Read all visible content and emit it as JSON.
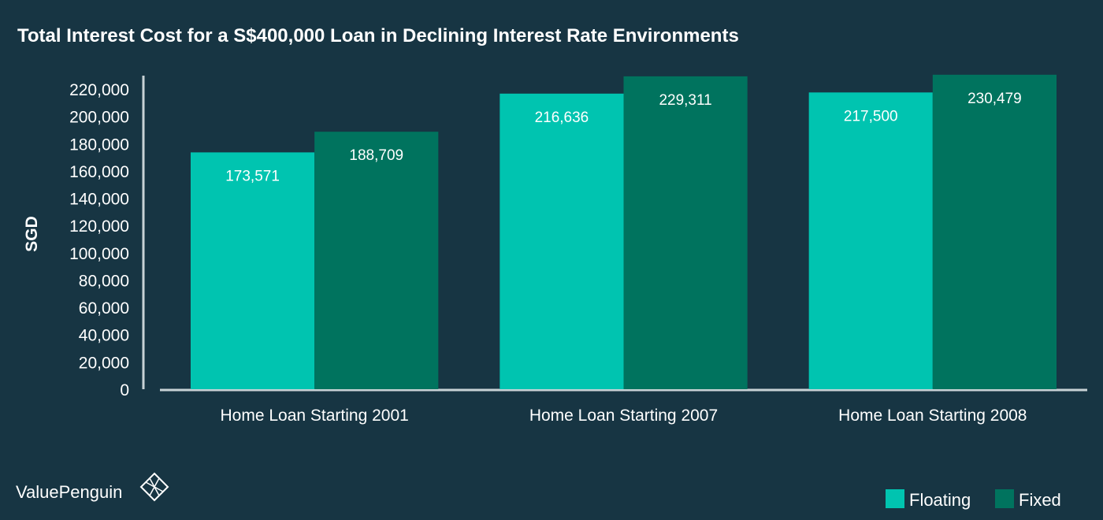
{
  "chart_data": {
    "type": "bar",
    "title": "Total Interest Cost for a S$400,000 Loan in Declining Interest Rate Environments",
    "ylabel": "SGD",
    "xlabel": "",
    "categories": [
      "Home Loan Starting 2001",
      "Home Loan Starting 2007",
      "Home Loan Starting 2008"
    ],
    "series": [
      {
        "name": "Floating",
        "color": "#00c4b0",
        "values": [
          173571,
          216636,
          217500
        ],
        "labels": [
          "173,571",
          "216,636",
          "217,500"
        ]
      },
      {
        "name": "Fixed",
        "color": "#00735e",
        "values": [
          188709,
          229311,
          230479
        ],
        "labels": [
          "188,709",
          "229,311",
          "230,479"
        ]
      }
    ],
    "ylim": [
      0,
      220000
    ],
    "yticks": [
      0,
      20000,
      40000,
      60000,
      80000,
      100000,
      120000,
      140000,
      160000,
      180000,
      200000,
      220000
    ],
    "ytick_labels": [
      "0",
      "20,000",
      "40,000",
      "60,000",
      "80,000",
      "100,000",
      "120,000",
      "140,000",
      "160,000",
      "180,000",
      "200,000",
      "220,000"
    ],
    "grid": false,
    "legend_position": "bottom-right"
  },
  "brand": {
    "name": "ValuePenguin",
    "logo_icon": "diamond-logo-icon"
  },
  "colors": {
    "background": "#173543",
    "axis": "#c8d2d6"
  }
}
